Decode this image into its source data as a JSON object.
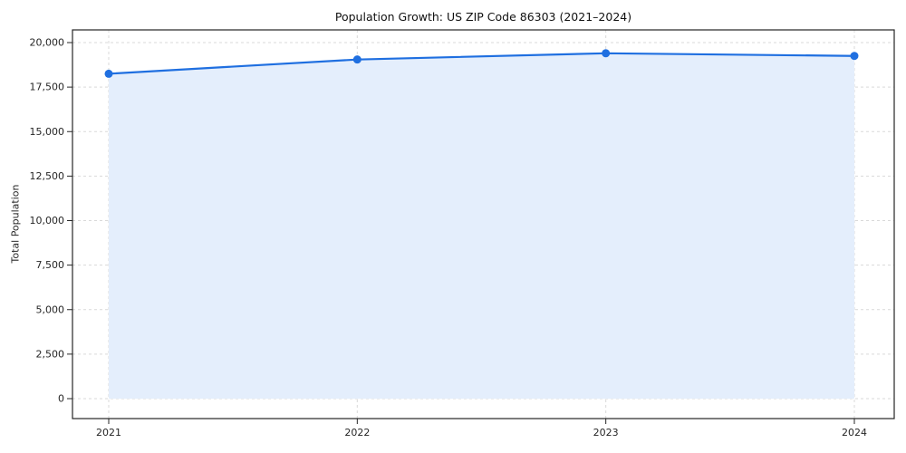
{
  "chart_data": {
    "type": "area",
    "title": "Population Growth: US ZIP Code 86303 (2021–2024)",
    "ylabel": "Total Population",
    "xlabel": "",
    "categories": [
      "2021",
      "2022",
      "2023",
      "2024"
    ],
    "values": [
      18250,
      19050,
      19400,
      19250
    ],
    "ylim": [
      0,
      20000
    ],
    "yticks": [
      0,
      2500,
      5000,
      7500,
      10000,
      12500,
      15000,
      17500,
      20000
    ],
    "ytick_labels": [
      "0",
      "2,500",
      "5,000",
      "7,500",
      "10,000",
      "12,500",
      "15,000",
      "17,500",
      "20,000"
    ],
    "grid": true,
    "legend_position": "none",
    "line_color": "#1f6fe0",
    "marker_color": "#1f6fe0",
    "fill_color": "#e4eefc",
    "grid_color": "#d9d9d9",
    "axis_color": "#262626",
    "background_color": "#ffffff"
  }
}
